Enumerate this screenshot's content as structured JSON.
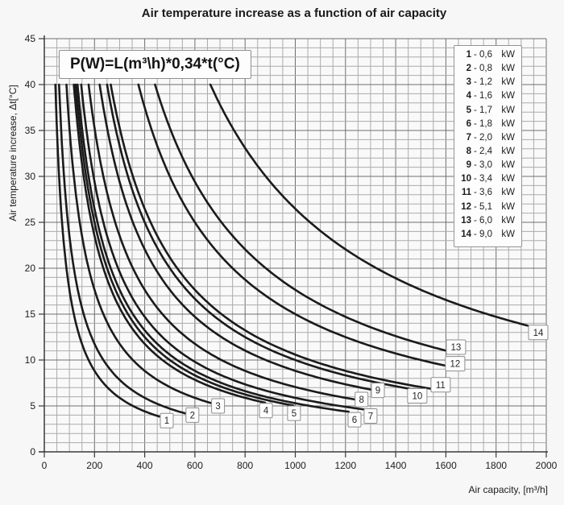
{
  "page": {
    "title": "Air temperature increase as a function of air capacity"
  },
  "chart_data": {
    "type": "line",
    "title": "Air temperature increase as a function of air capacity",
    "formula": "P(W)=L(m³\\h)*0,34*t(°C)",
    "xlabel": "Air capacity, [m³/h]",
    "ylabel": "Air temperature increase, Δt[°C]",
    "xlim": [
      0,
      2000
    ],
    "ylim": [
      0,
      45
    ],
    "x_major_ticks": [
      0,
      200,
      400,
      600,
      800,
      1000,
      1200,
      1400,
      1600,
      1800,
      2000
    ],
    "y_major_ticks": [
      0,
      5,
      10,
      15,
      20,
      25,
      30,
      35,
      40,
      45
    ],
    "x_minor_step": 50,
    "y_minor_step": 1,
    "grid": true,
    "legend_position": "top-right",
    "curve_model": "t(C) = P(W) / (0.34 * L(m3/h)), each curve clipped at t_max",
    "t_max": 40,
    "series": [
      {
        "n": 1,
        "power_label": "0,6",
        "power_w": 600,
        "L_start": 44,
        "L_end": 459,
        "number_label_at": {
          "L": 488,
          "t": 3.4
        }
      },
      {
        "n": 2,
        "power_label": "0,8",
        "power_w": 800,
        "L_start": 59,
        "L_end": 562,
        "number_label_at": {
          "L": 590,
          "t": 4.0
        }
      },
      {
        "n": 3,
        "power_label": "1,2",
        "power_w": 1200,
        "L_start": 88,
        "L_end": 664,
        "number_label_at": {
          "L": 692,
          "t": 5.0
        }
      },
      {
        "n": 4,
        "power_label": "1,6",
        "power_w": 1600,
        "L_start": 118,
        "L_end": 880,
        "number_label_at": {
          "L": 883,
          "t": 4.5
        }
      },
      {
        "n": 5,
        "power_label": "1,7",
        "power_w": 1700,
        "L_start": 125,
        "L_end": 993,
        "number_label_at": {
          "L": 995,
          "t": 4.2
        }
      },
      {
        "n": 6,
        "power_label": "1,8",
        "power_w": 1800,
        "L_start": 132,
        "L_end": 1213,
        "number_label_at": {
          "L": 1236,
          "t": 3.5
        }
      },
      {
        "n": 7,
        "power_label": "2,0",
        "power_w": 2000,
        "L_start": 147,
        "L_end": 1274,
        "number_label_at": {
          "L": 1300,
          "t": 3.9
        }
      },
      {
        "n": 8,
        "power_label": "2,4",
        "power_w": 2400,
        "L_start": 176,
        "L_end": 1236,
        "number_label_at": {
          "L": 1264,
          "t": 5.7
        }
      },
      {
        "n": 9,
        "power_label": "3,0",
        "power_w": 3000,
        "L_start": 221,
        "L_end": 1307,
        "number_label_at": {
          "L": 1329,
          "t": 6.7
        }
      },
      {
        "n": 10,
        "power_label": "3,4",
        "power_w": 3400,
        "L_start": 250,
        "L_end": 1452,
        "number_label_at": {
          "L": 1486,
          "t": 6.1
        }
      },
      {
        "n": 11,
        "power_label": "3,6",
        "power_w": 3600,
        "L_start": 265,
        "L_end": 1548,
        "number_label_at": {
          "L": 1579,
          "t": 7.3
        }
      },
      {
        "n": 12,
        "power_label": "5,1",
        "power_w": 5100,
        "L_start": 375,
        "L_end": 1597,
        "number_label_at": {
          "L": 1637,
          "t": 9.6
        }
      },
      {
        "n": 13,
        "power_label": "6,0",
        "power_w": 6000,
        "L_start": 441,
        "L_end": 1610,
        "number_label_at": {
          "L": 1640,
          "t": 11.4
        }
      },
      {
        "n": 14,
        "power_label": "9,0",
        "power_w": 9000,
        "L_start": 662,
        "L_end": 1926,
        "number_label_at": {
          "L": 1968,
          "t": 13.0
        }
      }
    ],
    "legend": {
      "separator": "-",
      "unit": "kW",
      "entries": [
        {
          "n": "1",
          "value": "0,6"
        },
        {
          "n": "2",
          "value": "0,8"
        },
        {
          "n": "3",
          "value": "1,2"
        },
        {
          "n": "4",
          "value": "1,6"
        },
        {
          "n": "5",
          "value": "1,7"
        },
        {
          "n": "6",
          "value": "1,8"
        },
        {
          "n": "7",
          "value": "2,0"
        },
        {
          "n": "8",
          "value": "2,4"
        },
        {
          "n": "9",
          "value": "3,0"
        },
        {
          "n": "10",
          "value": "3,4"
        },
        {
          "n": "11",
          "value": "3,6"
        },
        {
          "n": "12",
          "value": "5,1"
        },
        {
          "n": "13",
          "value": "6,0"
        },
        {
          "n": "14",
          "value": "9,0"
        }
      ]
    },
    "colors": {
      "curve": "#1b1b1b",
      "grid_minor": "#ababab",
      "grid_major": "#6e6e6e",
      "axis": "#3a3a3a",
      "text": "#1d1d1d",
      "box_border": "#8f8f8f",
      "box_bg": "#fdfdfd",
      "plot_bg": "#f9f9f9",
      "page_bg": "#f7f7f7"
    }
  }
}
